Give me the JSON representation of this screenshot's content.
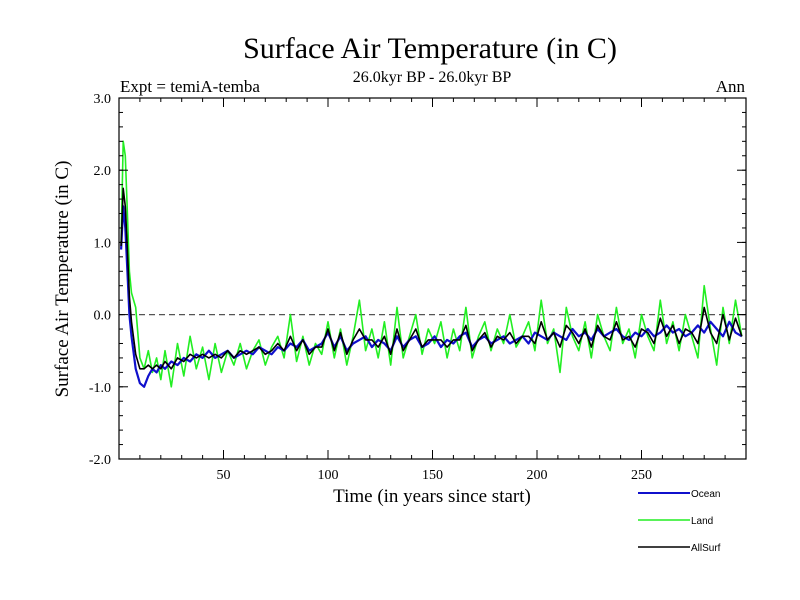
{
  "chart_data": {
    "type": "line",
    "title": "Surface Air Temperature (in C)",
    "subtitle": "26.0kyr BP - 26.0kyr BP",
    "left_label": "Expt = temiA-temba",
    "right_label": "Ann",
    "xlabel": "Time (in years since start)",
    "ylabel": "Surface Air Temperature (in C)",
    "xlim": [
      0,
      300
    ],
    "ylim": [
      -2.0,
      3.0
    ],
    "x_ticks": [
      50,
      100,
      150,
      200,
      250
    ],
    "x_tick_labels": [
      "50",
      "100",
      "150",
      "200",
      "250"
    ],
    "y_ticks": [
      -2.0,
      -1.0,
      0.0,
      1.0,
      2.0,
      3.0
    ],
    "y_tick_labels": [
      "-2.0",
      "-1.0",
      "0.0",
      "1.0",
      "2.0",
      "3.0"
    ],
    "reference_line": 0.0,
    "legend_position": "bottom-right",
    "series": [
      {
        "name": "Ocean",
        "color": "#1010cc",
        "x": [
          1,
          2,
          3,
          4,
          5,
          6,
          8,
          10,
          12,
          14,
          16,
          18,
          20,
          22,
          25,
          28,
          31,
          34,
          37,
          40,
          43,
          46,
          49,
          52,
          55,
          58,
          61,
          64,
          67,
          70,
          73,
          76,
          79,
          82,
          85,
          88,
          91,
          94,
          97,
          100,
          103,
          106,
          109,
          112,
          115,
          118,
          121,
          124,
          127,
          130,
          133,
          136,
          139,
          142,
          145,
          148,
          151,
          154,
          157,
          160,
          163,
          166,
          169,
          172,
          175,
          178,
          181,
          184,
          187,
          190,
          193,
          196,
          199,
          202,
          205,
          208,
          211,
          214,
          217,
          220,
          223,
          226,
          229,
          232,
          235,
          238,
          241,
          244,
          247,
          250,
          253,
          256,
          259,
          262,
          265,
          268,
          271,
          274,
          277,
          280,
          283,
          286,
          289,
          292,
          295,
          298
        ],
        "values": [
          0.9,
          1.5,
          1.2,
          0.6,
          0.0,
          -0.3,
          -0.75,
          -0.95,
          -1.0,
          -0.85,
          -0.75,
          -0.8,
          -0.7,
          -0.75,
          -0.65,
          -0.7,
          -0.6,
          -0.65,
          -0.55,
          -0.6,
          -0.5,
          -0.6,
          -0.55,
          -0.5,
          -0.6,
          -0.55,
          -0.5,
          -0.55,
          -0.45,
          -0.5,
          -0.55,
          -0.45,
          -0.5,
          -0.4,
          -0.45,
          -0.35,
          -0.5,
          -0.45,
          -0.4,
          -0.25,
          -0.45,
          -0.3,
          -0.5,
          -0.4,
          -0.35,
          -0.3,
          -0.45,
          -0.35,
          -0.4,
          -0.5,
          -0.3,
          -0.45,
          -0.35,
          -0.3,
          -0.45,
          -0.4,
          -0.3,
          -0.45,
          -0.35,
          -0.4,
          -0.3,
          -0.25,
          -0.45,
          -0.35,
          -0.3,
          -0.4,
          -0.35,
          -0.3,
          -0.4,
          -0.35,
          -0.3,
          -0.4,
          -0.25,
          -0.3,
          -0.35,
          -0.25,
          -0.3,
          -0.35,
          -0.2,
          -0.3,
          -0.25,
          -0.35,
          -0.2,
          -0.3,
          -0.25,
          -0.2,
          -0.3,
          -0.35,
          -0.25,
          -0.3,
          -0.2,
          -0.3,
          -0.25,
          -0.15,
          -0.25,
          -0.2,
          -0.3,
          -0.25,
          -0.15,
          -0.25,
          -0.1,
          -0.2,
          -0.3,
          -0.1,
          -0.25,
          -0.3
        ]
      },
      {
        "name": "Land",
        "color": "#22ee22",
        "x": [
          1,
          2,
          3,
          4,
          5,
          6,
          8,
          10,
          12,
          14,
          16,
          18,
          20,
          22,
          25,
          28,
          31,
          34,
          37,
          40,
          43,
          46,
          49,
          52,
          55,
          58,
          61,
          64,
          67,
          70,
          73,
          76,
          79,
          82,
          85,
          88,
          91,
          94,
          97,
          100,
          103,
          106,
          109,
          112,
          115,
          118,
          121,
          124,
          127,
          130,
          133,
          136,
          139,
          142,
          145,
          148,
          151,
          154,
          157,
          160,
          163,
          166,
          169,
          172,
          175,
          178,
          181,
          184,
          187,
          190,
          193,
          196,
          199,
          202,
          205,
          208,
          211,
          214,
          217,
          220,
          223,
          226,
          229,
          232,
          235,
          238,
          241,
          244,
          247,
          250,
          253,
          256,
          259,
          262,
          265,
          268,
          271,
          274,
          277,
          280,
          283,
          286,
          289,
          292,
          295,
          298
        ],
        "values": [
          1.0,
          2.4,
          2.2,
          1.4,
          0.6,
          0.3,
          0.1,
          -0.6,
          -0.75,
          -0.5,
          -0.8,
          -0.6,
          -0.9,
          -0.5,
          -1.0,
          -0.4,
          -0.85,
          -0.3,
          -0.75,
          -0.45,
          -0.9,
          -0.4,
          -0.8,
          -0.5,
          -0.7,
          -0.4,
          -0.75,
          -0.5,
          -0.35,
          -0.7,
          -0.45,
          -0.3,
          -0.6,
          0.0,
          -0.65,
          -0.3,
          -0.7,
          -0.4,
          -0.55,
          -0.1,
          -0.6,
          -0.2,
          -0.7,
          -0.3,
          0.2,
          -0.5,
          -0.2,
          -0.6,
          -0.1,
          -0.7,
          0.1,
          -0.6,
          -0.3,
          0.0,
          -0.55,
          -0.2,
          -0.4,
          -0.1,
          -0.6,
          -0.2,
          -0.5,
          0.1,
          -0.6,
          -0.3,
          -0.1,
          -0.5,
          -0.2,
          -0.4,
          0.0,
          -0.45,
          -0.3,
          -0.1,
          -0.5,
          0.2,
          -0.4,
          -0.2,
          -0.8,
          0.1,
          -0.3,
          -0.5,
          -0.1,
          -0.6,
          0.0,
          -0.3,
          -0.5,
          0.1,
          -0.4,
          -0.2,
          -0.6,
          0.0,
          -0.3,
          -0.5,
          0.2,
          -0.4,
          -0.1,
          -0.5,
          0.0,
          -0.3,
          -0.6,
          0.4,
          -0.2,
          -0.7,
          0.1,
          -0.4,
          0.2,
          -0.3
        ]
      },
      {
        "name": "AllSurf",
        "color": "#000000",
        "x": [
          1,
          2,
          3,
          4,
          5,
          6,
          8,
          10,
          12,
          14,
          16,
          18,
          20,
          22,
          25,
          28,
          31,
          34,
          37,
          40,
          43,
          46,
          49,
          52,
          55,
          58,
          61,
          64,
          67,
          70,
          73,
          76,
          79,
          82,
          85,
          88,
          91,
          94,
          97,
          100,
          103,
          106,
          109,
          112,
          115,
          118,
          121,
          124,
          127,
          130,
          133,
          136,
          139,
          142,
          145,
          148,
          151,
          154,
          157,
          160,
          163,
          166,
          169,
          172,
          175,
          178,
          181,
          184,
          187,
          190,
          193,
          196,
          199,
          202,
          205,
          208,
          211,
          214,
          217,
          220,
          223,
          226,
          229,
          232,
          235,
          238,
          241,
          244,
          247,
          250,
          253,
          256,
          259,
          262,
          265,
          268,
          271,
          274,
          277,
          280,
          283,
          286,
          289,
          292,
          295,
          298
        ],
        "values": [
          0.95,
          1.75,
          1.5,
          0.9,
          0.25,
          -0.1,
          -0.55,
          -0.75,
          -0.75,
          -0.7,
          -0.75,
          -0.7,
          -0.75,
          -0.65,
          -0.75,
          -0.6,
          -0.65,
          -0.55,
          -0.6,
          -0.55,
          -0.6,
          -0.55,
          -0.6,
          -0.5,
          -0.6,
          -0.5,
          -0.55,
          -0.5,
          -0.45,
          -0.55,
          -0.5,
          -0.4,
          -0.5,
          -0.3,
          -0.5,
          -0.35,
          -0.55,
          -0.45,
          -0.45,
          -0.2,
          -0.5,
          -0.25,
          -0.55,
          -0.35,
          -0.2,
          -0.35,
          -0.35,
          -0.45,
          -0.3,
          -0.55,
          -0.2,
          -0.5,
          -0.35,
          -0.2,
          -0.45,
          -0.35,
          -0.35,
          -0.35,
          -0.45,
          -0.35,
          -0.35,
          -0.15,
          -0.5,
          -0.35,
          -0.25,
          -0.45,
          -0.3,
          -0.35,
          -0.25,
          -0.4,
          -0.3,
          -0.3,
          -0.4,
          -0.1,
          -0.35,
          -0.25,
          -0.45,
          -0.15,
          -0.25,
          -0.4,
          -0.2,
          -0.45,
          -0.15,
          -0.3,
          -0.35,
          -0.1,
          -0.35,
          -0.3,
          -0.45,
          -0.2,
          -0.25,
          -0.4,
          -0.05,
          -0.3,
          -0.15,
          -0.4,
          -0.2,
          -0.25,
          -0.4,
          0.1,
          -0.25,
          -0.4,
          0.0,
          -0.35,
          -0.05,
          -0.3
        ]
      }
    ]
  }
}
